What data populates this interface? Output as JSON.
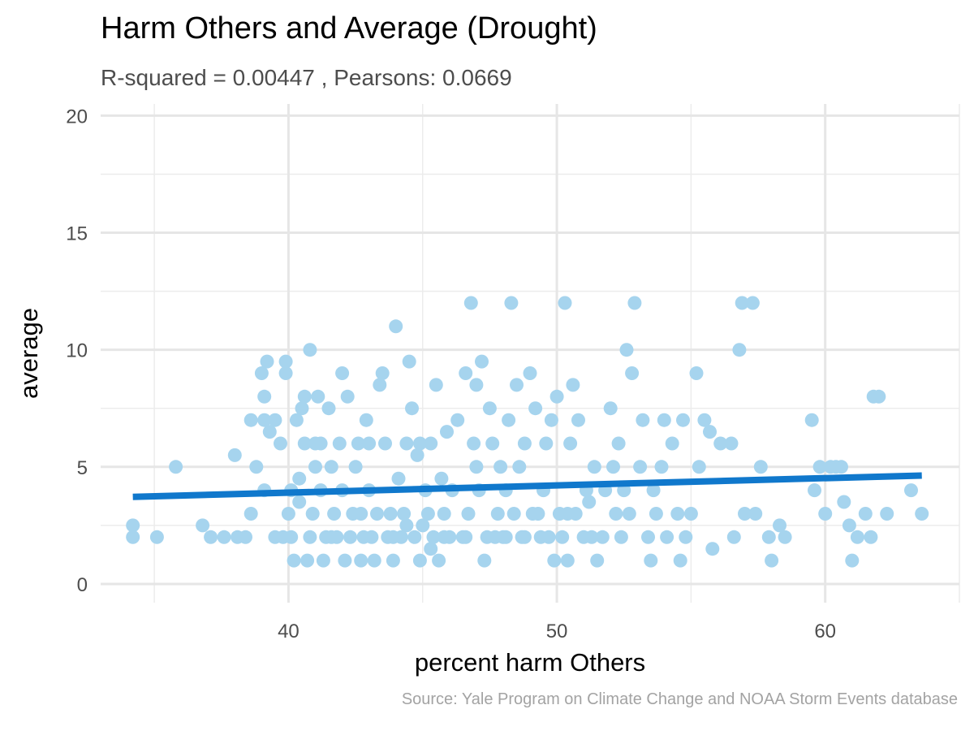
{
  "chart_data": {
    "type": "scatter",
    "title": "Harm Others and Average (Drought)",
    "subtitle": "R-squared =  0.00447 , Pearsons: 0.0669",
    "caption": "Source: Yale Program on Climate Change and NOAA Storm Events database",
    "xlabel": "percent harm Others",
    "ylabel": "average",
    "xlim": [
      33,
      65
    ],
    "ylim": [
      -0.8,
      20.5
    ],
    "x_ticks": [
      40,
      50,
      60
    ],
    "y_ticks": [
      0,
      5,
      10,
      15,
      20
    ],
    "grid": true,
    "point_color": "#a6d4ee",
    "trend_color": "#1078cc",
    "trend_line": {
      "x": [
        34.2,
        63.6
      ],
      "y": [
        3.72,
        4.63
      ]
    },
    "points": [
      [
        34.2,
        2.5
      ],
      [
        34.2,
        2.0
      ],
      [
        35.1,
        2.0
      ],
      [
        35.8,
        5.0
      ],
      [
        36.8,
        2.5
      ],
      [
        37.1,
        2.0
      ],
      [
        37.6,
        2.0
      ],
      [
        38.0,
        5.5
      ],
      [
        38.1,
        2.0
      ],
      [
        38.4,
        2.0
      ],
      [
        38.6,
        3.0
      ],
      [
        38.6,
        7.0
      ],
      [
        38.8,
        5.0
      ],
      [
        39.0,
        9.0
      ],
      [
        39.1,
        8.0
      ],
      [
        39.1,
        7.0
      ],
      [
        39.2,
        9.5
      ],
      [
        39.1,
        4.0
      ],
      [
        39.3,
        6.5
      ],
      [
        39.5,
        7.0
      ],
      [
        39.5,
        2.0
      ],
      [
        39.7,
        6.0
      ],
      [
        39.8,
        2.0
      ],
      [
        39.9,
        9.5
      ],
      [
        39.9,
        9.0
      ],
      [
        40.0,
        3.0
      ],
      [
        40.1,
        2.0
      ],
      [
        40.1,
        4.0
      ],
      [
        40.2,
        1.0
      ],
      [
        40.3,
        7.0
      ],
      [
        40.4,
        3.5
      ],
      [
        40.4,
        4.5
      ],
      [
        40.5,
        7.5
      ],
      [
        40.6,
        8.0
      ],
      [
        40.6,
        6.0
      ],
      [
        40.7,
        1.0
      ],
      [
        40.8,
        10.0
      ],
      [
        40.8,
        2.0
      ],
      [
        40.9,
        3.0
      ],
      [
        41.0,
        5.0
      ],
      [
        41.0,
        6.0
      ],
      [
        41.1,
        8.0
      ],
      [
        41.2,
        4.0
      ],
      [
        41.3,
        1.0
      ],
      [
        41.4,
        2.0
      ],
      [
        41.5,
        7.5
      ],
      [
        41.6,
        5.0
      ],
      [
        41.7,
        3.0
      ],
      [
        41.8,
        2.0
      ],
      [
        41.9,
        6.0
      ],
      [
        42.0,
        9.0
      ],
      [
        42.0,
        4.0
      ],
      [
        42.1,
        1.0
      ],
      [
        42.2,
        8.0
      ],
      [
        42.3,
        2.0
      ],
      [
        42.4,
        3.0
      ],
      [
        42.5,
        5.0
      ],
      [
        42.6,
        6.0
      ],
      [
        42.7,
        1.0
      ],
      [
        42.8,
        2.0
      ],
      [
        42.9,
        7.0
      ],
      [
        43.0,
        4.0
      ],
      [
        43.1,
        2.0
      ],
      [
        43.2,
        1.0
      ],
      [
        43.3,
        3.0
      ],
      [
        43.4,
        8.5
      ],
      [
        43.5,
        9.0
      ],
      [
        43.6,
        6.0
      ],
      [
        43.7,
        2.0
      ],
      [
        43.8,
        3.0
      ],
      [
        43.9,
        1.0
      ],
      [
        44.0,
        11.0
      ],
      [
        44.1,
        4.5
      ],
      [
        44.2,
        2.0
      ],
      [
        44.3,
        3.0
      ],
      [
        44.4,
        6.0
      ],
      [
        44.5,
        9.5
      ],
      [
        44.6,
        7.5
      ],
      [
        44.7,
        2.0
      ],
      [
        44.8,
        5.5
      ],
      [
        44.9,
        1.0
      ],
      [
        45.0,
        2.5
      ],
      [
        45.1,
        4.0
      ],
      [
        45.2,
        3.0
      ],
      [
        45.3,
        6.0
      ],
      [
        45.4,
        2.0
      ],
      [
        45.5,
        8.5
      ],
      [
        45.6,
        1.0
      ],
      [
        45.7,
        4.5
      ],
      [
        45.8,
        3.0
      ],
      [
        45.9,
        6.5
      ],
      [
        46.0,
        2.0
      ],
      [
        46.1,
        4.0
      ],
      [
        46.3,
        7.0
      ],
      [
        46.5,
        2.0
      ],
      [
        46.6,
        9.0
      ],
      [
        46.7,
        3.0
      ],
      [
        46.8,
        12.0
      ],
      [
        46.9,
        6.0
      ],
      [
        47.0,
        8.5
      ],
      [
        47.1,
        4.0
      ],
      [
        47.2,
        9.5
      ],
      [
        47.3,
        1.0
      ],
      [
        47.4,
        2.0
      ],
      [
        47.5,
        7.5
      ],
      [
        47.6,
        6.0
      ],
      [
        47.8,
        3.0
      ],
      [
        47.9,
        5.0
      ],
      [
        48.0,
        2.0
      ],
      [
        48.1,
        4.0
      ],
      [
        48.2,
        7.0
      ],
      [
        48.3,
        12.0
      ],
      [
        48.4,
        3.0
      ],
      [
        48.5,
        8.5
      ],
      [
        48.6,
        5.0
      ],
      [
        48.7,
        2.0
      ],
      [
        48.8,
        6.0
      ],
      [
        49.0,
        9.0
      ],
      [
        49.1,
        3.0
      ],
      [
        49.2,
        7.5
      ],
      [
        49.4,
        2.0
      ],
      [
        49.5,
        4.0
      ],
      [
        49.6,
        6.0
      ],
      [
        49.7,
        2.0
      ],
      [
        49.8,
        7.0
      ],
      [
        49.9,
        1.0
      ],
      [
        50.0,
        8.0
      ],
      [
        50.1,
        3.0
      ],
      [
        50.2,
        2.0
      ],
      [
        50.3,
        12.0
      ],
      [
        50.4,
        1.0
      ],
      [
        50.5,
        6.0
      ],
      [
        50.6,
        8.5
      ],
      [
        50.7,
        3.0
      ],
      [
        50.8,
        7.0
      ],
      [
        51.0,
        2.0
      ],
      [
        51.1,
        4.0
      ],
      [
        51.2,
        3.5
      ],
      [
        51.3,
        2.0
      ],
      [
        51.4,
        5.0
      ],
      [
        51.5,
        1.0
      ],
      [
        51.7,
        2.0
      ],
      [
        51.8,
        4.0
      ],
      [
        52.0,
        7.5
      ],
      [
        52.1,
        5.0
      ],
      [
        52.2,
        3.0
      ],
      [
        52.3,
        6.0
      ],
      [
        52.4,
        2.0
      ],
      [
        52.5,
        4.0
      ],
      [
        52.6,
        10.0
      ],
      [
        52.7,
        3.0
      ],
      [
        52.8,
        9.0
      ],
      [
        52.9,
        12.0
      ],
      [
        53.1,
        5.0
      ],
      [
        53.2,
        7.0
      ],
      [
        53.4,
        2.0
      ],
      [
        53.5,
        1.0
      ],
      [
        53.6,
        4.0
      ],
      [
        53.7,
        3.0
      ],
      [
        53.9,
        5.0
      ],
      [
        54.0,
        7.0
      ],
      [
        54.1,
        2.0
      ],
      [
        54.3,
        6.0
      ],
      [
        54.5,
        3.0
      ],
      [
        54.6,
        1.0
      ],
      [
        54.7,
        7.0
      ],
      [
        54.8,
        2.0
      ],
      [
        55.0,
        3.0
      ],
      [
        55.2,
        9.0
      ],
      [
        55.3,
        5.0
      ],
      [
        55.5,
        7.0
      ],
      [
        55.7,
        6.5
      ],
      [
        55.8,
        1.5
      ],
      [
        56.1,
        6.0
      ],
      [
        56.5,
        6.0
      ],
      [
        56.6,
        2.0
      ],
      [
        56.8,
        10.0
      ],
      [
        56.9,
        12.0
      ],
      [
        57.0,
        3.0
      ],
      [
        57.3,
        12.0
      ],
      [
        57.4,
        3.0
      ],
      [
        57.6,
        5.0
      ],
      [
        57.9,
        2.0
      ],
      [
        58.0,
        1.0
      ],
      [
        58.3,
        2.5
      ],
      [
        58.5,
        2.0
      ],
      [
        59.5,
        7.0
      ],
      [
        59.6,
        4.0
      ],
      [
        59.8,
        5.0
      ],
      [
        60.0,
        3.0
      ],
      [
        60.2,
        5.0
      ],
      [
        60.4,
        5.0
      ],
      [
        60.6,
        5.0
      ],
      [
        60.7,
        3.5
      ],
      [
        60.9,
        2.5
      ],
      [
        61.0,
        1.0
      ],
      [
        61.2,
        2.0
      ],
      [
        61.5,
        3.0
      ],
      [
        61.7,
        2.0
      ],
      [
        61.8,
        8.0
      ],
      [
        62.0,
        8.0
      ],
      [
        62.3,
        3.0
      ],
      [
        63.2,
        4.0
      ],
      [
        63.6,
        3.0
      ],
      [
        41.2,
        6.0
      ],
      [
        42.7,
        3.0
      ],
      [
        44.4,
        2.5
      ],
      [
        45.8,
        2.0
      ],
      [
        47.0,
        5.0
      ],
      [
        48.8,
        2.0
      ],
      [
        50.4,
        3.0
      ],
      [
        43.0,
        6.0
      ],
      [
        44.9,
        6.0
      ],
      [
        46.6,
        2.0
      ],
      [
        48.1,
        2.0
      ],
      [
        41.6,
        2.0
      ],
      [
        43.9,
        2.0
      ],
      [
        45.3,
        1.5
      ],
      [
        47.7,
        2.0
      ],
      [
        49.3,
        3.0
      ]
    ]
  }
}
